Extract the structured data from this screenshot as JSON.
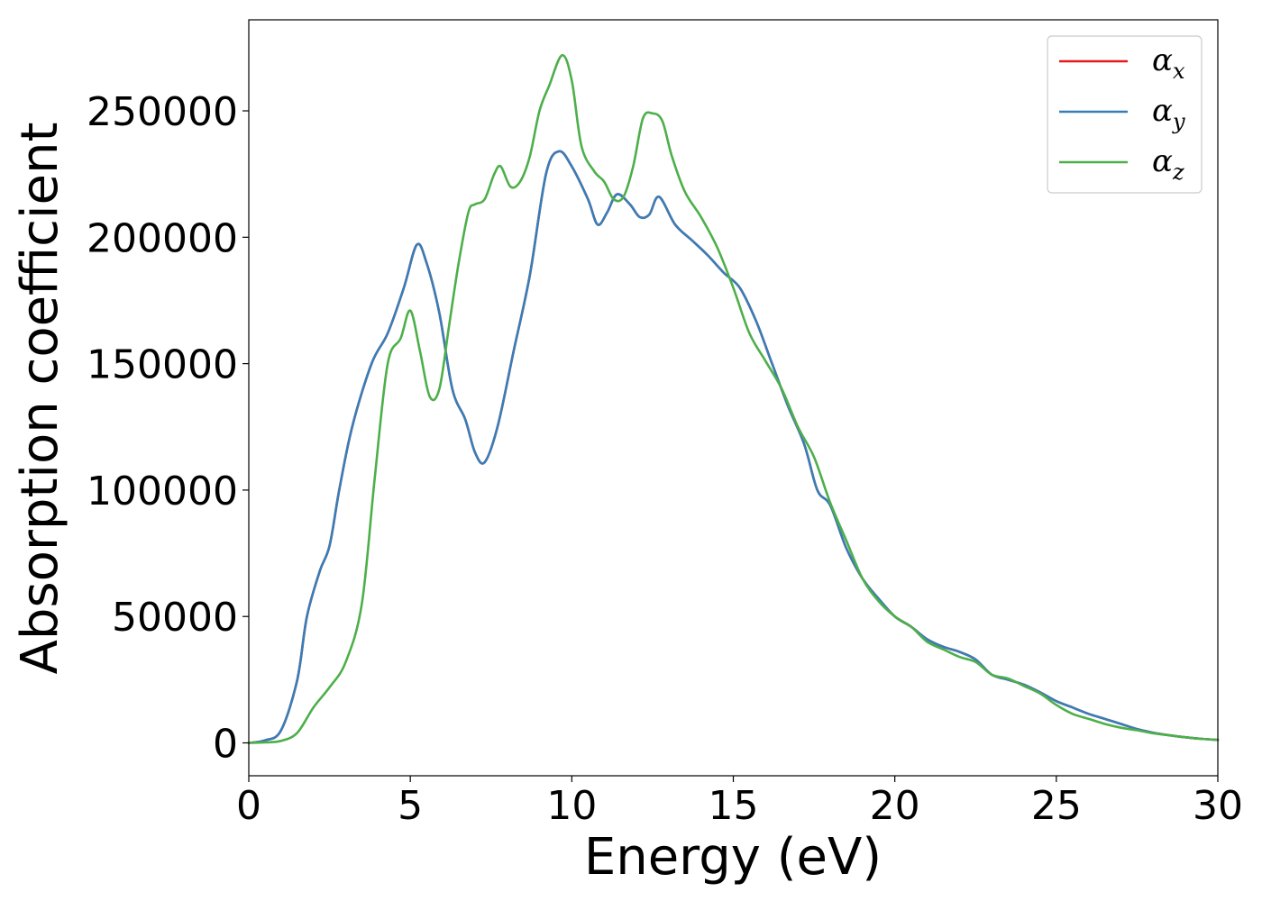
{
  "chart_data": {
    "type": "line",
    "title": "",
    "xlabel": "Energy (eV)",
    "ylabel": "Absorption coefficient",
    "xlim": [
      0,
      30
    ],
    "ylim": [
      -13000,
      286000
    ],
    "grid": false,
    "legend_position": "top-right",
    "x_ticks": [
      0,
      5,
      10,
      15,
      20,
      25,
      30
    ],
    "x_tick_labels": [
      "0",
      "5",
      "10",
      "15",
      "20",
      "25",
      "30"
    ],
    "y_ticks": [
      0,
      50000,
      100000,
      150000,
      200000,
      250000
    ],
    "y_tick_labels": [
      "0",
      "50000",
      "100000",
      "150000",
      "200000",
      "250000"
    ],
    "series": [
      {
        "name": "αx",
        "symbol": "α",
        "subscript": "x",
        "color": "#e41a1c",
        "x": [
          0,
          0.5,
          1.0,
          1.5,
          1.8,
          2.2,
          2.5,
          2.8,
          3.2,
          3.8,
          4.3,
          4.8,
          5.2,
          5.5,
          5.9,
          6.3,
          6.7,
          7.0,
          7.3,
          7.7,
          8.2,
          8.7,
          9.2,
          9.6,
          10.0,
          10.5,
          10.8,
          11.1,
          11.4,
          11.8,
          12.1,
          12.4,
          12.7,
          13.2,
          13.7,
          14.2,
          14.7,
          15.2,
          15.7,
          16.2,
          16.7,
          17.2,
          17.6,
          18.0,
          18.5,
          19.0,
          19.5,
          20.0,
          20.5,
          21.0,
          21.5,
          22.0,
          22.5,
          23.0,
          23.5,
          24.0,
          24.5,
          25.0,
          25.5,
          26.0,
          26.5,
          27.0,
          27.5,
          28.0,
          28.5,
          29.0,
          29.5,
          30.0
        ],
        "y": [
          0,
          1000,
          5000,
          25000,
          50000,
          68000,
          78000,
          100000,
          125000,
          150000,
          162000,
          180000,
          197000,
          190000,
          170000,
          140000,
          128000,
          115000,
          111000,
          125000,
          155000,
          185000,
          225000,
          234000,
          228000,
          215000,
          205000,
          210000,
          217000,
          213000,
          208000,
          209000,
          216000,
          205000,
          199000,
          193000,
          186000,
          180000,
          167000,
          150000,
          133000,
          118000,
          100000,
          94000,
          77000,
          65000,
          57000,
          50000,
          46000,
          41000,
          38000,
          36000,
          33000,
          27000,
          25000,
          23000,
          20000,
          16500,
          14000,
          11500,
          9500,
          7500,
          5500,
          4000,
          3000,
          2200,
          1600,
          1200
        ]
      },
      {
        "name": "αy",
        "symbol": "α",
        "subscript": "y",
        "color": "#377eb8",
        "x": [
          0,
          0.5,
          1.0,
          1.5,
          1.8,
          2.2,
          2.5,
          2.8,
          3.2,
          3.8,
          4.3,
          4.8,
          5.2,
          5.5,
          5.9,
          6.3,
          6.7,
          7.0,
          7.3,
          7.7,
          8.2,
          8.7,
          9.2,
          9.6,
          10.0,
          10.5,
          10.8,
          11.1,
          11.4,
          11.8,
          12.1,
          12.4,
          12.7,
          13.2,
          13.7,
          14.2,
          14.7,
          15.2,
          15.7,
          16.2,
          16.7,
          17.2,
          17.6,
          18.0,
          18.5,
          19.0,
          19.5,
          20.0,
          20.5,
          21.0,
          21.5,
          22.0,
          22.5,
          23.0,
          23.5,
          24.0,
          24.5,
          25.0,
          25.5,
          26.0,
          26.5,
          27.0,
          27.5,
          28.0,
          28.5,
          29.0,
          29.5,
          30.0
        ],
        "y": [
          0,
          1000,
          5000,
          25000,
          50000,
          68000,
          78000,
          100000,
          125000,
          150000,
          162000,
          180000,
          197000,
          190000,
          170000,
          140000,
          128000,
          115000,
          111000,
          125000,
          155000,
          185000,
          225000,
          234000,
          228000,
          215000,
          205000,
          210000,
          217000,
          213000,
          208000,
          209000,
          216000,
          205000,
          199000,
          193000,
          186000,
          180000,
          167000,
          150000,
          133000,
          118000,
          100000,
          94000,
          77000,
          65000,
          57000,
          50000,
          46000,
          41000,
          38000,
          36000,
          33000,
          27000,
          25000,
          23000,
          20000,
          16500,
          14000,
          11500,
          9500,
          7500,
          5500,
          4000,
          3000,
          2200,
          1600,
          1200
        ]
      },
      {
        "name": "αz",
        "symbol": "α",
        "subscript": "z",
        "color": "#4daf4a",
        "x": [
          0,
          0.5,
          1.0,
          1.5,
          2.0,
          2.5,
          3.0,
          3.5,
          3.9,
          4.3,
          4.7,
          5.0,
          5.3,
          5.6,
          5.9,
          6.2,
          6.5,
          6.8,
          7.0,
          7.3,
          7.6,
          7.8,
          8.1,
          8.4,
          8.7,
          9.0,
          9.3,
          9.7,
          10.0,
          10.3,
          10.7,
          11.0,
          11.3,
          11.6,
          11.9,
          12.2,
          12.5,
          12.8,
          13.1,
          13.5,
          14.0,
          14.5,
          15.0,
          15.5,
          16.0,
          16.5,
          17.0,
          17.5,
          18.0,
          18.5,
          19.0,
          19.5,
          20.0,
          20.5,
          21.0,
          21.5,
          22.0,
          22.5,
          23.0,
          23.5,
          24.0,
          24.5,
          25.0,
          25.5,
          26.0,
          26.5,
          27.0,
          27.5,
          28.0,
          28.5,
          29.0,
          29.5,
          30.0
        ],
        "y": [
          0,
          200,
          800,
          4000,
          14000,
          22000,
          32000,
          55000,
          105000,
          150000,
          160000,
          171000,
          155000,
          137000,
          140000,
          165000,
          190000,
          210000,
          213000,
          215000,
          225000,
          228000,
          220000,
          222000,
          232000,
          250000,
          260000,
          272000,
          262000,
          236000,
          226000,
          222000,
          215000,
          216000,
          228000,
          247000,
          249000,
          246000,
          232000,
          218000,
          208000,
          196000,
          180000,
          162000,
          151000,
          140000,
          125000,
          113000,
          95000,
          80000,
          65000,
          56000,
          50000,
          46000,
          40000,
          37000,
          34000,
          32000,
          27000,
          25500,
          22500,
          19500,
          15000,
          11500,
          9500,
          7500,
          6000,
          5000,
          3800,
          3000,
          2200,
          1600,
          1200
        ]
      }
    ]
  }
}
